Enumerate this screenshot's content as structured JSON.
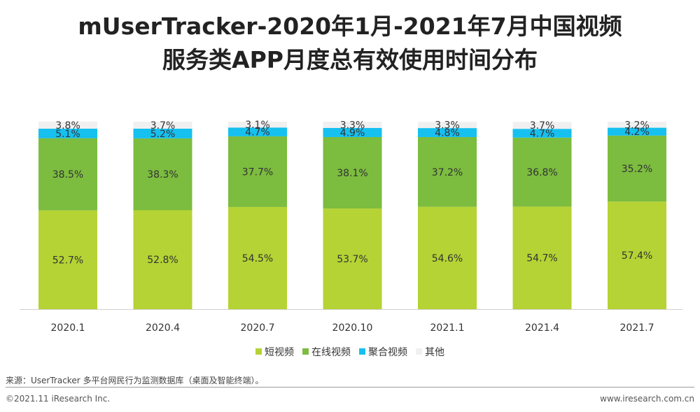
{
  "title_line1": "mUserTracker-2020年1月-2021年7月中国视频",
  "title_line2": "服务类APP月度总有效使用时间分布",
  "chart_data": {
    "type": "bar",
    "stacked": true,
    "normalized": true,
    "categories": [
      "2020.1",
      "2020.4",
      "2020.7",
      "2020.10",
      "2021.1",
      "2021.4",
      "2021.7"
    ],
    "series": [
      {
        "name": "短视频",
        "color": "#b5d334",
        "values": [
          52.7,
          52.8,
          54.5,
          53.7,
          54.6,
          54.7,
          57.4
        ]
      },
      {
        "name": "在线视频",
        "color": "#7cbc3f",
        "values": [
          38.5,
          38.3,
          37.7,
          38.1,
          37.2,
          36.8,
          35.2
        ]
      },
      {
        "name": "聚合视频",
        "color": "#16c0ef",
        "values": [
          5.1,
          5.2,
          4.7,
          4.9,
          4.8,
          4.7,
          4.2
        ]
      },
      {
        "name": "其他",
        "color": "#f0f0f0",
        "values": [
          3.8,
          3.7,
          3.1,
          3.3,
          3.3,
          3.7,
          3.2
        ]
      }
    ],
    "value_suffix": "%",
    "ylim": [
      0,
      100
    ],
    "grid": false,
    "legend_position": "bottom"
  },
  "source_text": "来源：UserTracker 多平台网民行为监测数据库（桌面及智能终端）。",
  "copyright_text": "©2021.11 iResearch Inc.",
  "website_text": "www.iresearch.com.cn"
}
